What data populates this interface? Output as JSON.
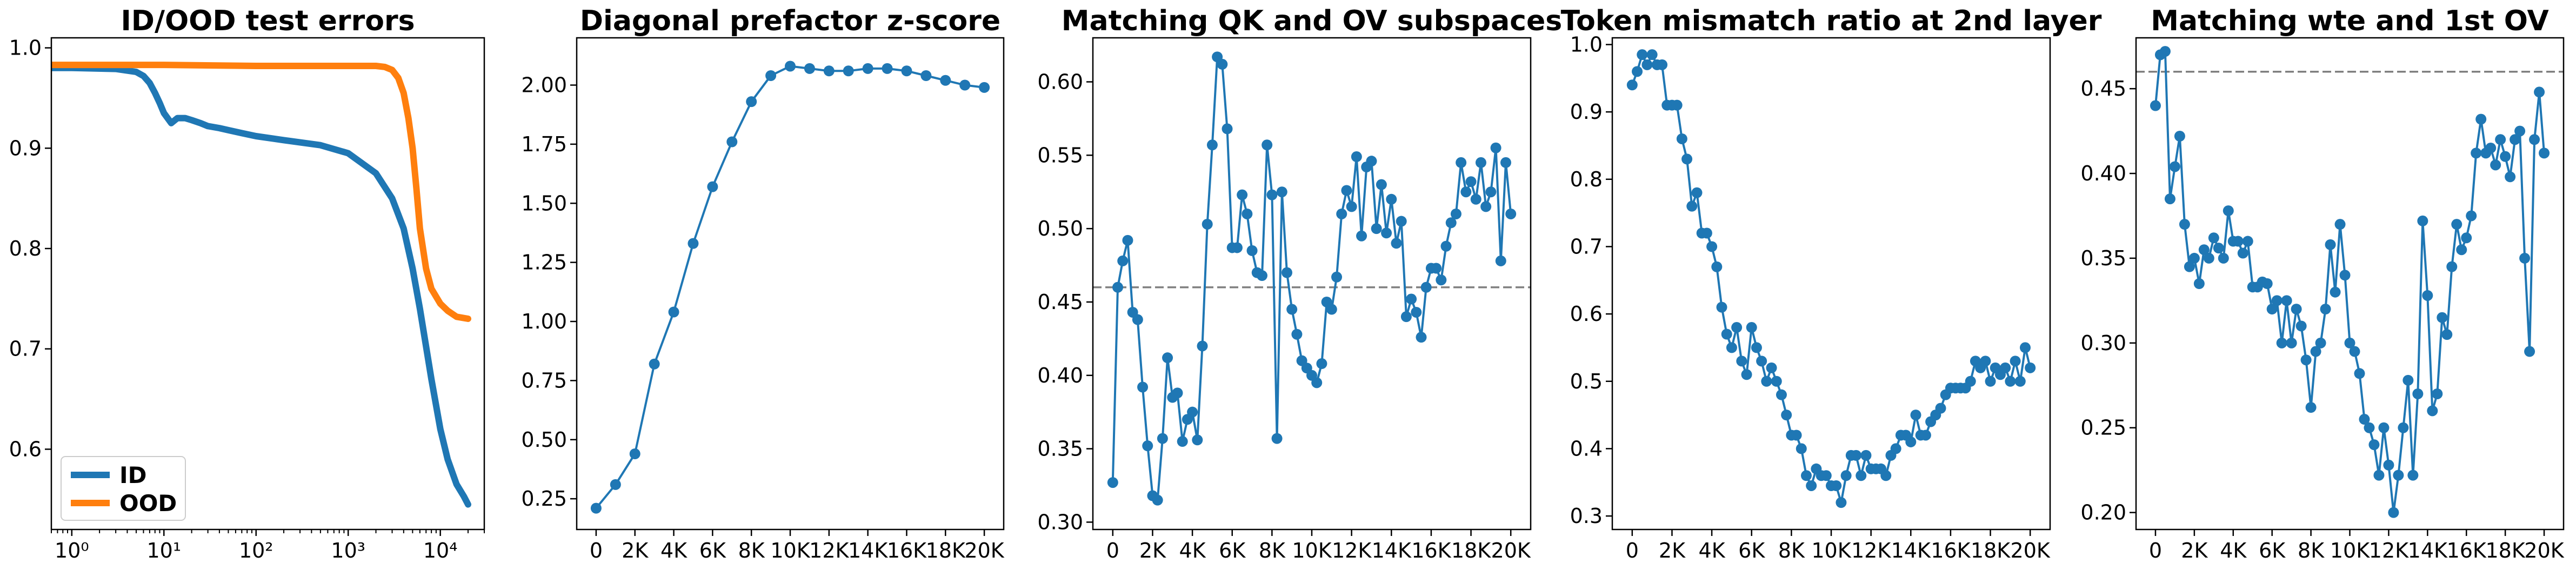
{
  "colors": {
    "blue": "#1f77b4",
    "orange": "#ff7f0e",
    "ref_line": "#808080"
  },
  "chart_data": [
    {
      "type": "line",
      "title": "ID/OOD test errors",
      "x_scale": "log",
      "xlim": [
        0.6,
        30000
      ],
      "ylim": [
        0.52,
        1.01
      ],
      "x_ticks": [
        1,
        10,
        100,
        1000,
        10000
      ],
      "x_tick_labels": [
        "10⁰",
        "10¹",
        "10²",
        "10³",
        "10⁴"
      ],
      "y_ticks": [
        0.6,
        0.7,
        0.8,
        0.9,
        1.0
      ],
      "y_tick_labels": [
        "0.6",
        "0.7",
        "0.8",
        "0.9",
        "1.0"
      ],
      "legend": "lower-left",
      "series": [
        {
          "name": "ID",
          "color": "#1f77b4",
          "x": [
            0.6,
            1,
            3,
            5,
            6,
            7,
            8,
            9,
            10,
            12,
            14,
            17,
            20,
            25,
            30,
            40,
            50,
            70,
            100,
            200,
            500,
            1000,
            2000,
            3000,
            4000,
            5000,
            6000,
            8000,
            10000,
            12000,
            15000,
            18000,
            20000
          ],
          "y": [
            0.98,
            0.98,
            0.979,
            0.976,
            0.972,
            0.965,
            0.955,
            0.945,
            0.935,
            0.925,
            0.93,
            0.93,
            0.928,
            0.925,
            0.922,
            0.92,
            0.918,
            0.915,
            0.912,
            0.908,
            0.903,
            0.895,
            0.875,
            0.85,
            0.82,
            0.78,
            0.74,
            0.67,
            0.62,
            0.59,
            0.565,
            0.553,
            0.545
          ]
        },
        {
          "name": "OOD",
          "color": "#ff7f0e",
          "x": [
            0.6,
            1,
            10,
            100,
            500,
            1000,
            2000,
            2500,
            3000,
            3500,
            4000,
            4500,
            5000,
            5500,
            6000,
            7000,
            8000,
            10000,
            12000,
            15000,
            20000
          ],
          "y": [
            0.983,
            0.983,
            0.983,
            0.982,
            0.982,
            0.982,
            0.982,
            0.981,
            0.978,
            0.97,
            0.955,
            0.93,
            0.9,
            0.86,
            0.82,
            0.78,
            0.76,
            0.745,
            0.738,
            0.732,
            0.73
          ]
        }
      ]
    },
    {
      "type": "line",
      "title": "Diagonal prefactor z-score",
      "xlim": [
        -1000,
        21000
      ],
      "ylim": [
        0.12,
        2.2
      ],
      "x_ticks": [
        0,
        2000,
        4000,
        6000,
        8000,
        10000,
        12000,
        14000,
        16000,
        18000,
        20000
      ],
      "x_tick_labels": [
        "0",
        "2K",
        "4K",
        "6K",
        "8K",
        "10K",
        "12K",
        "14K",
        "16K",
        "18K",
        "20K"
      ],
      "y_ticks": [
        0.25,
        0.5,
        0.75,
        1.0,
        1.25,
        1.5,
        1.75,
        2.0
      ],
      "y_tick_labels": [
        "0.25",
        "0.50",
        "0.75",
        "1.00",
        "1.25",
        "1.50",
        "1.75",
        "2.00"
      ],
      "series": [
        {
          "color": "#1f77b4",
          "markers": true,
          "x": [
            0,
            1000,
            2000,
            3000,
            4000,
            5000,
            6000,
            7000,
            8000,
            9000,
            10000,
            11000,
            12000,
            13000,
            14000,
            15000,
            16000,
            17000,
            18000,
            19000,
            20000
          ],
          "y": [
            0.21,
            0.31,
            0.44,
            0.82,
            1.04,
            1.33,
            1.57,
            1.76,
            1.93,
            2.04,
            2.08,
            2.07,
            2.06,
            2.06,
            2.07,
            2.07,
            2.06,
            2.04,
            2.02,
            2.0,
            1.99
          ]
        }
      ]
    },
    {
      "type": "line",
      "title": "Matching QK and OV subspaces",
      "xlim": [
        -1000,
        21000
      ],
      "ylim": [
        0.295,
        0.63
      ],
      "x_ticks": [
        0,
        2000,
        4000,
        6000,
        8000,
        10000,
        12000,
        14000,
        16000,
        18000,
        20000
      ],
      "x_tick_labels": [
        "0",
        "2K",
        "4K",
        "6K",
        "8K",
        "10K",
        "12K",
        "14K",
        "16K",
        "18K",
        "20K"
      ],
      "y_ticks": [
        0.3,
        0.35,
        0.4,
        0.45,
        0.5,
        0.55,
        0.6
      ],
      "y_tick_labels": [
        "0.30",
        "0.35",
        "0.40",
        "0.45",
        "0.50",
        "0.55",
        "0.60"
      ],
      "reference_line": 0.46,
      "series": [
        {
          "color": "#1f77b4",
          "markers": true,
          "x": [
            0,
            250,
            500,
            750,
            1000,
            1250,
            1500,
            1750,
            2000,
            2250,
            2500,
            2750,
            3000,
            3250,
            3500,
            3750,
            4000,
            4250,
            4500,
            4750,
            5000,
            5250,
            5500,
            5750,
            6000,
            6250,
            6500,
            6750,
            7000,
            7250,
            7500,
            7750,
            8000,
            8250,
            8500,
            8750,
            9000,
            9250,
            9500,
            9750,
            10000,
            10250,
            10500,
            10750,
            11000,
            11250,
            11500,
            11750,
            12000,
            12250,
            12500,
            12750,
            13000,
            13250,
            13500,
            13750,
            14000,
            14250,
            14500,
            14750,
            15000,
            15250,
            15500,
            15750,
            16000,
            16250,
            16500,
            16750,
            17000,
            17250,
            17500,
            17750,
            18000,
            18250,
            18500,
            18750,
            19000,
            19250,
            19500,
            19750,
            20000
          ],
          "y": [
            0.327,
            0.46,
            0.478,
            0.492,
            0.443,
            0.438,
            0.392,
            0.352,
            0.318,
            0.315,
            0.357,
            0.412,
            0.385,
            0.388,
            0.355,
            0.37,
            0.375,
            0.356,
            0.42,
            0.503,
            0.557,
            0.617,
            0.612,
            0.568,
            0.487,
            0.487,
            0.523,
            0.51,
            0.485,
            0.47,
            0.468,
            0.557,
            0.523,
            0.357,
            0.525,
            0.47,
            0.445,
            0.428,
            0.41,
            0.405,
            0.4,
            0.395,
            0.408,
            0.45,
            0.445,
            0.467,
            0.51,
            0.526,
            0.515,
            0.549,
            0.495,
            0.542,
            0.546,
            0.5,
            0.53,
            0.497,
            0.52,
            0.49,
            0.505,
            0.44,
            0.452,
            0.443,
            0.426,
            0.46,
            0.473,
            0.473,
            0.465,
            0.488,
            0.504,
            0.51,
            0.545,
            0.525,
            0.532,
            0.52,
            0.545,
            0.515,
            0.525,
            0.555,
            0.478,
            0.545,
            0.51
          ]
        }
      ]
    },
    {
      "type": "line",
      "title": "Token mismatch ratio at 2nd layer",
      "xlim": [
        -1000,
        21000
      ],
      "ylim": [
        0.28,
        1.01
      ],
      "x_ticks": [
        0,
        2000,
        4000,
        6000,
        8000,
        10000,
        12000,
        14000,
        16000,
        18000,
        20000
      ],
      "x_tick_labels": [
        "0",
        "2K",
        "4K",
        "6K",
        "8K",
        "10K",
        "12K",
        "14K",
        "16K",
        "18K",
        "20K"
      ],
      "y_ticks": [
        0.3,
        0.4,
        0.5,
        0.6,
        0.7,
        0.8,
        0.9,
        1.0
      ],
      "y_tick_labels": [
        "0.3",
        "0.4",
        "0.5",
        "0.6",
        "0.7",
        "0.8",
        "0.9",
        "1.0"
      ],
      "series": [
        {
          "color": "#1f77b4",
          "markers": true,
          "x": [
            0,
            250,
            500,
            750,
            1000,
            1250,
            1500,
            1750,
            2000,
            2250,
            2500,
            2750,
            3000,
            3250,
            3500,
            3750,
            4000,
            4250,
            4500,
            4750,
            5000,
            5250,
            5500,
            5750,
            6000,
            6250,
            6500,
            6750,
            7000,
            7250,
            7500,
            7750,
            8000,
            8250,
            8500,
            8750,
            9000,
            9250,
            9500,
            9750,
            10000,
            10250,
            10500,
            10750,
            11000,
            11250,
            11500,
            11750,
            12000,
            12250,
            12500,
            12750,
            13000,
            13250,
            13500,
            13750,
            14000,
            14250,
            14500,
            14750,
            15000,
            15250,
            15500,
            15750,
            16000,
            16250,
            16500,
            16750,
            17000,
            17250,
            17500,
            17750,
            18000,
            18250,
            18500,
            18750,
            19000,
            19250,
            19500,
            19750,
            20000
          ],
          "y": [
            0.94,
            0.96,
            0.985,
            0.97,
            0.985,
            0.97,
            0.97,
            0.91,
            0.91,
            0.91,
            0.86,
            0.83,
            0.76,
            0.78,
            0.72,
            0.72,
            0.7,
            0.67,
            0.61,
            0.57,
            0.55,
            0.58,
            0.53,
            0.51,
            0.58,
            0.55,
            0.53,
            0.5,
            0.52,
            0.5,
            0.48,
            0.45,
            0.42,
            0.42,
            0.4,
            0.36,
            0.345,
            0.37,
            0.36,
            0.36,
            0.345,
            0.345,
            0.32,
            0.36,
            0.39,
            0.39,
            0.36,
            0.39,
            0.37,
            0.37,
            0.37,
            0.36,
            0.39,
            0.4,
            0.42,
            0.42,
            0.41,
            0.45,
            0.42,
            0.42,
            0.44,
            0.45,
            0.46,
            0.48,
            0.49,
            0.49,
            0.49,
            0.49,
            0.5,
            0.53,
            0.52,
            0.53,
            0.5,
            0.52,
            0.51,
            0.52,
            0.5,
            0.53,
            0.5,
            0.55,
            0.52
          ]
        }
      ]
    },
    {
      "type": "line",
      "title": "Matching wte and 1st OV",
      "xlim": [
        -1000,
        21000
      ],
      "ylim": [
        0.19,
        0.48
      ],
      "x_ticks": [
        0,
        2000,
        4000,
        6000,
        8000,
        10000,
        12000,
        14000,
        16000,
        18000,
        20000
      ],
      "x_tick_labels": [
        "0",
        "2K",
        "4K",
        "6K",
        "8K",
        "10K",
        "12K",
        "14K",
        "16K",
        "18K",
        "20K"
      ],
      "y_ticks": [
        0.2,
        0.25,
        0.3,
        0.35,
        0.4,
        0.45
      ],
      "y_tick_labels": [
        "0.20",
        "0.25",
        "0.30",
        "0.35",
        "0.40",
        "0.45"
      ],
      "reference_line": 0.46,
      "series": [
        {
          "color": "#1f77b4",
          "markers": true,
          "x": [
            0,
            250,
            500,
            750,
            1000,
            1250,
            1500,
            1750,
            2000,
            2250,
            2500,
            2750,
            3000,
            3250,
            3500,
            3750,
            4000,
            4250,
            4500,
            4750,
            5000,
            5250,
            5500,
            5750,
            6000,
            6250,
            6500,
            6750,
            7000,
            7250,
            7500,
            7750,
            8000,
            8250,
            8500,
            8750,
            9000,
            9250,
            9500,
            9750,
            10000,
            10250,
            10500,
            10750,
            11000,
            11250,
            11500,
            11750,
            12000,
            12250,
            12500,
            12750,
            13000,
            13250,
            13500,
            13750,
            14000,
            14250,
            14500,
            14750,
            15000,
            15250,
            15500,
            15750,
            16000,
            16250,
            16500,
            16750,
            17000,
            17250,
            17500,
            17750,
            18000,
            18250,
            18500,
            18750,
            19000,
            19250,
            19500,
            19750,
            20000
          ],
          "y": [
            0.44,
            0.47,
            0.472,
            0.385,
            0.404,
            0.422,
            0.37,
            0.345,
            0.35,
            0.335,
            0.355,
            0.35,
            0.362,
            0.356,
            0.35,
            0.378,
            0.36,
            0.36,
            0.353,
            0.36,
            0.333,
            0.333,
            0.336,
            0.335,
            0.32,
            0.325,
            0.3,
            0.325,
            0.3,
            0.32,
            0.31,
            0.29,
            0.262,
            0.295,
            0.3,
            0.32,
            0.358,
            0.33,
            0.37,
            0.34,
            0.3,
            0.295,
            0.282,
            0.255,
            0.25,
            0.24,
            0.222,
            0.25,
            0.228,
            0.2,
            0.222,
            0.25,
            0.278,
            0.222,
            0.27,
            0.372,
            0.328,
            0.26,
            0.27,
            0.315,
            0.305,
            0.345,
            0.37,
            0.355,
            0.362,
            0.375,
            0.412,
            0.432,
            0.412,
            0.415,
            0.405,
            0.42,
            0.41,
            0.398,
            0.42,
            0.425,
            0.35,
            0.295,
            0.42,
            0.448,
            0.412
          ]
        }
      ]
    }
  ]
}
